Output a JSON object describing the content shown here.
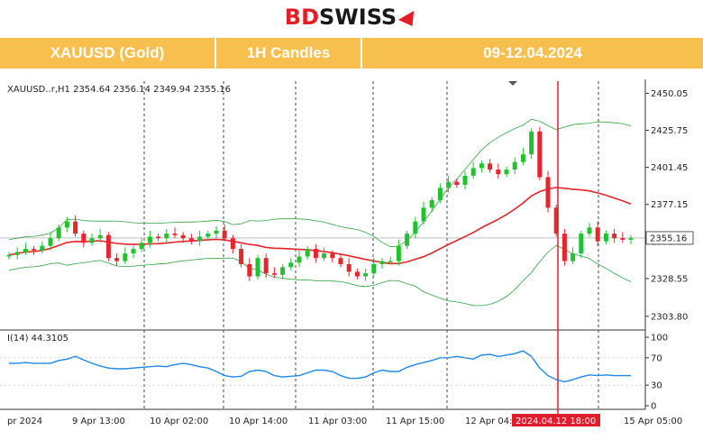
{
  "brand": {
    "bd": "BD",
    "swiss": "SWISS"
  },
  "header": {
    "symbol": "XAUUSD (Gold)",
    "timeframe": "1H Candles",
    "dates": "09-12.04.2024"
  },
  "chart_data": [
    {
      "type": "candlestick",
      "info_label": "XAUUSD..r,H1  2354.64 2356.14 2349.94 2355.16",
      "price_ticks": [
        "2450.05",
        "2425.75",
        "2401.45",
        "2377.15",
        "2352.85",
        "2328.55",
        "2303.80"
      ],
      "price_tick_values": [
        2450.05,
        2425.75,
        2401.45,
        2377.15,
        2352.85,
        2328.55,
        2303.8
      ],
      "ylim": [
        2296,
        2458
      ],
      "current_price": {
        "label": "2355.16",
        "value": 2355.16
      },
      "time_labels": [
        "pr 2024",
        "9 Apr 13:00",
        "10 Apr 02:00",
        "10 Apr 14:00",
        "11 Apr 03:00",
        "11 Apr 15:00",
        "12 Apr 04:",
        "2024.04.12 18:00",
        "15 Apr 05:00"
      ],
      "highlight_time_label": "2024.04.12 18:00",
      "closes": [
        2344,
        2346,
        2348,
        2347,
        2350,
        2355,
        2362,
        2366,
        2358,
        2352,
        2355,
        2357,
        2342,
        2340,
        2345,
        2348,
        2352,
        2356,
        2355,
        2358,
        2357,
        2355,
        2353,
        2356,
        2358,
        2360,
        2355,
        2348,
        2338,
        2330,
        2342,
        2332,
        2331,
        2336,
        2339,
        2343,
        2348,
        2342,
        2345,
        2342,
        2338,
        2333,
        2330,
        2332,
        2338,
        2340,
        2340,
        2350,
        2358,
        2366,
        2375,
        2380,
        2388,
        2392,
        2390,
        2396,
        2401,
        2404,
        2400,
        2397,
        2400,
        2405,
        2410,
        2425,
        2395,
        2375,
        2358,
        2340,
        2345,
        2358,
        2362,
        2353,
        2358,
        2355,
        2354,
        2355
      ],
      "bollinger": {
        "upper_end": 2413,
        "middle_end": 2378,
        "lower_end": 2318
      },
      "current_marker_index": 63
    },
    {
      "type": "line",
      "info_label": "I(14) 44.3105",
      "ylim": [
        0,
        100
      ],
      "ticks": [
        "100",
        "70",
        "30",
        "0"
      ],
      "tick_values": [
        100,
        70,
        30,
        0
      ],
      "values": [
        62,
        62,
        63,
        62,
        62,
        62,
        66,
        68,
        72,
        67,
        62,
        58,
        55,
        54,
        54,
        55,
        56,
        57,
        58,
        57,
        60,
        62,
        60,
        57,
        55,
        50,
        44,
        42,
        43,
        50,
        52,
        50,
        44,
        42,
        43,
        44,
        48,
        52,
        52,
        50,
        44,
        40,
        40,
        42,
        48,
        52,
        50,
        50,
        56,
        60,
        63,
        66,
        70,
        70,
        72,
        70,
        68,
        74,
        75,
        72,
        74,
        76,
        80,
        72,
        55,
        44,
        38,
        35,
        38,
        42,
        45,
        44,
        45,
        44,
        44,
        44
      ]
    }
  ],
  "colors": {
    "header_bg": "#f7bf4d",
    "bull": "#22c22f",
    "bear": "#e5262c",
    "ma": "#e3242b",
    "band": "#33a140",
    "osc": "#1e88e5",
    "vline": "#e01e2b"
  }
}
